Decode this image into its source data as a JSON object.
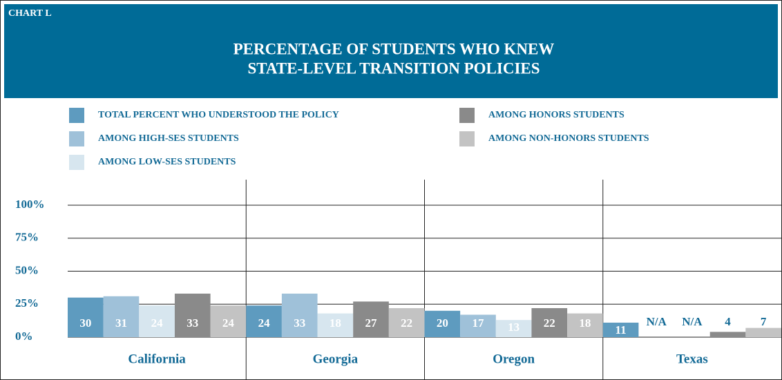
{
  "chart_data": {
    "type": "bar",
    "label": "CHART L",
    "title": [
      "PERCENTAGE OF STUDENTS WHO KNEW",
      "STATE-LEVEL TRANSITION POLICIES"
    ],
    "categories": [
      "California",
      "Georgia",
      "Oregon",
      "Texas"
    ],
    "series": [
      {
        "name": "TOTAL PERCENT WHO UNDERSTOOD THE POLICY",
        "color": "#5e9bbf",
        "values": [
          30,
          24,
          20,
          11
        ]
      },
      {
        "name": "AMONG HIGH-SES STUDENTS",
        "color": "#9fc1d9",
        "values": [
          31,
          33,
          17,
          null
        ],
        "value_labels": [
          "31",
          "33",
          "17",
          "N/A"
        ]
      },
      {
        "name": "AMONG LOW-SES STUDENTS",
        "color": "#d7e6ef",
        "values": [
          24,
          18,
          13,
          null
        ],
        "value_labels": [
          "24",
          "18",
          "13",
          "N/A"
        ]
      },
      {
        "name": "AMONG HONORS STUDENTS",
        "color": "#8a8a8a",
        "values": [
          33,
          27,
          22,
          4
        ]
      },
      {
        "name": "AMONG NON-HONORS STUDENTS",
        "color": "#c3c3c3",
        "values": [
          24,
          22,
          18,
          7
        ]
      }
    ],
    "ylim": [
      0,
      100
    ],
    "yticks": [
      {
        "value": 0,
        "label": "0%"
      },
      {
        "value": 25,
        "label": "25%"
      },
      {
        "value": 50,
        "label": "50%"
      },
      {
        "value": 75,
        "label": "75%"
      },
      {
        "value": 100,
        "label": "100%"
      }
    ],
    "grid": true
  }
}
